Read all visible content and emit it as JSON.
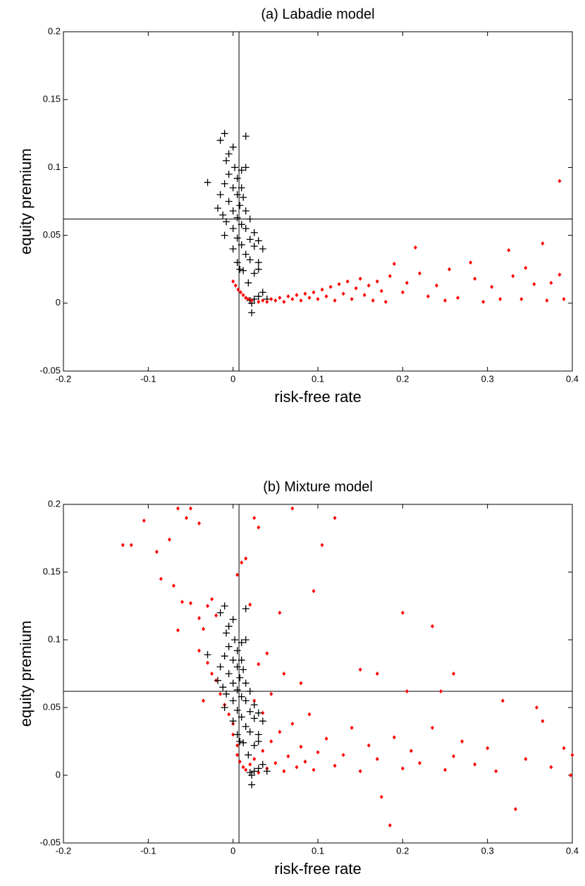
{
  "chart_data": [
    {
      "type": "scatter",
      "title": "(a)  Labadie model",
      "x_label": "risk-free rate",
      "y_label": "equity premium",
      "xlim": [
        -0.2,
        0.4
      ],
      "ylim": [
        -0.05,
        0.2
      ],
      "xticks": [
        -0.2,
        -0.1,
        0,
        0.1,
        0.2,
        0.3,
        0.4
      ],
      "yticks": [
        -0.05,
        0,
        0.05,
        0.1,
        0.15,
        0.2
      ],
      "vline": 0.007,
      "hline": 0.062,
      "series": [
        {
          "color": "#000000",
          "marker": "+",
          "x": [
            -0.015,
            -0.01,
            0.015,
            -0.005,
            0.0,
            -0.008,
            0.002,
            0.01,
            0.015,
            -0.005,
            0.005,
            -0.03,
            -0.01,
            0.0,
            0.01,
            -0.015,
            0.005,
            0.012,
            -0.005,
            0.008,
            -0.018,
            0.0,
            0.015,
            -0.012,
            0.005,
            0.02,
            -0.008,
            0.01,
            0.0,
            0.015,
            0.025,
            -0.01,
            0.005,
            0.02,
            0.03,
            0.01,
            0.025,
            0.035,
            0.0,
            0.015,
            0.02,
            0.03,
            0.008,
            0.012,
            0.025,
            0.03,
            0.035,
            0.03,
            0.02,
            0.022,
            0.025,
            0.04,
            0.022,
            0.005,
            0.018
          ],
          "values": [
            0.12,
            0.125,
            0.123,
            0.11,
            0.115,
            0.105,
            0.1,
            0.098,
            0.1,
            0.095,
            0.092,
            0.089,
            0.088,
            0.085,
            0.085,
            0.08,
            0.08,
            0.078,
            0.075,
            0.072,
            0.07,
            0.068,
            0.068,
            0.065,
            0.063,
            0.062,
            0.06,
            0.058,
            0.055,
            0.055,
            0.052,
            0.05,
            0.048,
            0.047,
            0.046,
            0.043,
            0.042,
            0.04,
            0.04,
            0.036,
            0.032,
            0.03,
            0.025,
            0.024,
            0.022,
            0.025,
            0.008,
            0.005,
            0.002,
            0.0,
            0.003,
            0.003,
            -0.007,
            0.03,
            0.015
          ]
        },
        {
          "color": "#ff0000",
          "marker": ".",
          "x": [
            0.0,
            0.003,
            0.006,
            0.009,
            0.012,
            0.015,
            0.018,
            0.022,
            0.03,
            0.035,
            0.04,
            0.045,
            0.05,
            0.055,
            0.06,
            0.065,
            0.07,
            0.075,
            0.08,
            0.085,
            0.09,
            0.095,
            0.1,
            0.105,
            0.11,
            0.115,
            0.12,
            0.125,
            0.13,
            0.135,
            0.14,
            0.145,
            0.15,
            0.155,
            0.16,
            0.165,
            0.17,
            0.175,
            0.18,
            0.185,
            0.19,
            0.2,
            0.205,
            0.215,
            0.22,
            0.23,
            0.24,
            0.25,
            0.255,
            0.265,
            0.28,
            0.285,
            0.295,
            0.305,
            0.315,
            0.325,
            0.33,
            0.34,
            0.345,
            0.355,
            0.365,
            0.37,
            0.375,
            0.385,
            0.385,
            0.39
          ],
          "values": [
            0.016,
            0.013,
            0.01,
            0.008,
            0.006,
            0.004,
            0.003,
            0.002,
            0.001,
            0.002,
            0.001,
            0.003,
            0.002,
            0.004,
            0.001,
            0.005,
            0.003,
            0.006,
            0.002,
            0.007,
            0.004,
            0.008,
            0.003,
            0.01,
            0.005,
            0.012,
            0.002,
            0.014,
            0.007,
            0.016,
            0.003,
            0.011,
            0.018,
            0.006,
            0.013,
            0.002,
            0.016,
            0.009,
            0.001,
            0.02,
            0.029,
            0.008,
            0.015,
            0.041,
            0.022,
            0.005,
            0.013,
            0.002,
            0.025,
            0.004,
            0.03,
            0.018,
            0.001,
            0.012,
            0.003,
            0.039,
            0.02,
            0.003,
            0.026,
            0.014,
            0.044,
            0.002,
            0.015,
            0.021,
            0.09,
            0.003
          ]
        }
      ]
    },
    {
      "type": "scatter",
      "title": "(b) Mixture model",
      "x_label": "risk-free rate",
      "y_label": "equity premium",
      "xlim": [
        -0.2,
        0.4
      ],
      "ylim": [
        -0.05,
        0.2
      ],
      "xticks": [
        -0.2,
        -0.1,
        0,
        0.1,
        0.2,
        0.3,
        0.4
      ],
      "yticks": [
        -0.05,
        0,
        0.05,
        0.1,
        0.15,
        0.2
      ],
      "vline": 0.007,
      "hline": 0.062,
      "series": [
        {
          "color": "#ff0000",
          "marker": ".",
          "x": [
            -0.13,
            -0.12,
            -0.105,
            -0.09,
            -0.065,
            -0.055,
            -0.05,
            -0.04,
            -0.075,
            -0.085,
            -0.07,
            -0.06,
            -0.05,
            -0.04,
            -0.035,
            -0.03,
            -0.025,
            -0.02,
            -0.065,
            -0.04,
            -0.03,
            -0.025,
            -0.02,
            -0.035,
            -0.015,
            -0.01,
            -0.005,
            0.0,
            0.0,
            0.005,
            0.005,
            0.008,
            0.012,
            0.015,
            0.02,
            0.025,
            0.03,
            0.035,
            0.04,
            0.045,
            0.05,
            0.055,
            0.06,
            0.065,
            0.07,
            0.075,
            0.08,
            0.085,
            0.09,
            0.095,
            0.1,
            0.11,
            0.12,
            0.13,
            0.14,
            0.15,
            0.16,
            0.17,
            0.175,
            0.185,
            0.19,
            0.2,
            0.21,
            0.22,
            0.235,
            0.25,
            0.26,
            0.27,
            0.285,
            0.3,
            0.31,
            0.318,
            0.333,
            0.345,
            0.358,
            0.365,
            0.375,
            0.39,
            0.398,
            0.4,
            0.01,
            0.005,
            0.025,
            0.03,
            0.015,
            0.02,
            0.055,
            0.07,
            0.095,
            0.105,
            0.12,
            0.2,
            0.235,
            0.03,
            0.04,
            0.06,
            0.08,
            0.15,
            0.17,
            0.205,
            0.245,
            0.26,
            0.045,
            0.025,
            0.035
          ],
          "values": [
            0.17,
            0.17,
            0.188,
            0.165,
            0.197,
            0.19,
            0.197,
            0.186,
            0.174,
            0.145,
            0.14,
            0.128,
            0.127,
            0.116,
            0.108,
            0.125,
            0.13,
            0.118,
            0.107,
            0.092,
            0.083,
            0.075,
            0.07,
            0.055,
            0.06,
            0.052,
            0.045,
            0.038,
            0.03,
            0.022,
            0.015,
            0.01,
            0.006,
            0.004,
            0.008,
            0.012,
            0.002,
            0.018,
            0.005,
            0.025,
            0.009,
            0.032,
            0.003,
            0.014,
            0.038,
            0.006,
            0.021,
            0.01,
            0.045,
            0.004,
            0.017,
            0.027,
            0.007,
            0.015,
            0.035,
            0.003,
            0.022,
            0.012,
            -0.016,
            -0.037,
            0.028,
            0.005,
            0.018,
            0.009,
            0.035,
            0.004,
            0.014,
            0.025,
            0.008,
            0.02,
            0.003,
            0.055,
            -0.025,
            0.012,
            0.05,
            0.04,
            0.006,
            0.02,
            0.0,
            0.015,
            0.157,
            0.148,
            0.19,
            0.183,
            0.16,
            0.126,
            0.12,
            0.197,
            0.136,
            0.17,
            0.19,
            0.12,
            0.11,
            0.082,
            0.09,
            0.075,
            0.068,
            0.078,
            0.075,
            0.062,
            0.062,
            0.075,
            0.06,
            0.055,
            0.046
          ]
        },
        {
          "color": "#000000",
          "marker": "+",
          "x": [
            -0.015,
            -0.01,
            0.015,
            -0.005,
            0.0,
            -0.008,
            0.002,
            0.01,
            0.015,
            -0.005,
            0.005,
            -0.03,
            -0.01,
            0.0,
            0.01,
            -0.015,
            0.005,
            0.012,
            -0.005,
            0.008,
            -0.018,
            0.0,
            0.015,
            -0.012,
            0.005,
            0.02,
            -0.008,
            0.01,
            0.0,
            0.015,
            0.025,
            -0.01,
            0.005,
            0.02,
            0.03,
            0.01,
            0.025,
            0.035,
            0.0,
            0.015,
            0.02,
            0.03,
            0.008,
            0.012,
            0.025,
            0.03,
            0.035,
            0.03,
            0.02,
            0.022,
            0.025,
            0.04,
            0.022,
            0.005,
            0.018
          ],
          "values": [
            0.12,
            0.125,
            0.123,
            0.11,
            0.115,
            0.105,
            0.1,
            0.098,
            0.1,
            0.095,
            0.092,
            0.089,
            0.088,
            0.085,
            0.085,
            0.08,
            0.08,
            0.078,
            0.075,
            0.072,
            0.07,
            0.068,
            0.068,
            0.065,
            0.063,
            0.062,
            0.06,
            0.058,
            0.055,
            0.055,
            0.052,
            0.05,
            0.048,
            0.047,
            0.046,
            0.043,
            0.042,
            0.04,
            0.04,
            0.036,
            0.032,
            0.03,
            0.025,
            0.024,
            0.022,
            0.025,
            0.008,
            0.005,
            0.002,
            0.0,
            0.003,
            0.003,
            -0.007,
            0.03,
            0.015
          ]
        }
      ]
    }
  ]
}
